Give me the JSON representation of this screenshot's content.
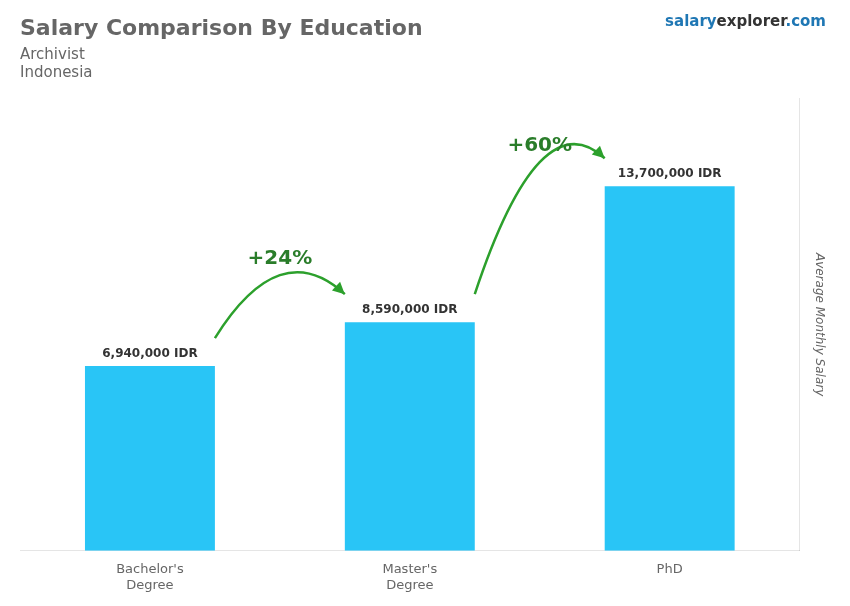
{
  "chart_data": {
    "type": "bar",
    "title": "Salary Comparison By Education",
    "subtitle": [
      "Archivist",
      "Indonesia"
    ],
    "brand": [
      "salary",
      "explorer",
      ".com"
    ],
    "categories": [
      "Bachelor's\nDegree",
      "Master's\nDegree",
      "PhD"
    ],
    "values": [
      6940000,
      8590000,
      13700000
    ],
    "value_labels": [
      "6,940,000 IDR",
      "8,590,000 IDR",
      "13,700,000 IDR"
    ],
    "data_labels": true,
    "annotations": [
      "+24%",
      "+60%"
    ],
    "ylabel": "Average Monthly Salary",
    "color": "#29c5f6",
    "ylim": [
      0,
      17000000
    ],
    "tick_labels": "x",
    "grid": false,
    "legend": false
  }
}
